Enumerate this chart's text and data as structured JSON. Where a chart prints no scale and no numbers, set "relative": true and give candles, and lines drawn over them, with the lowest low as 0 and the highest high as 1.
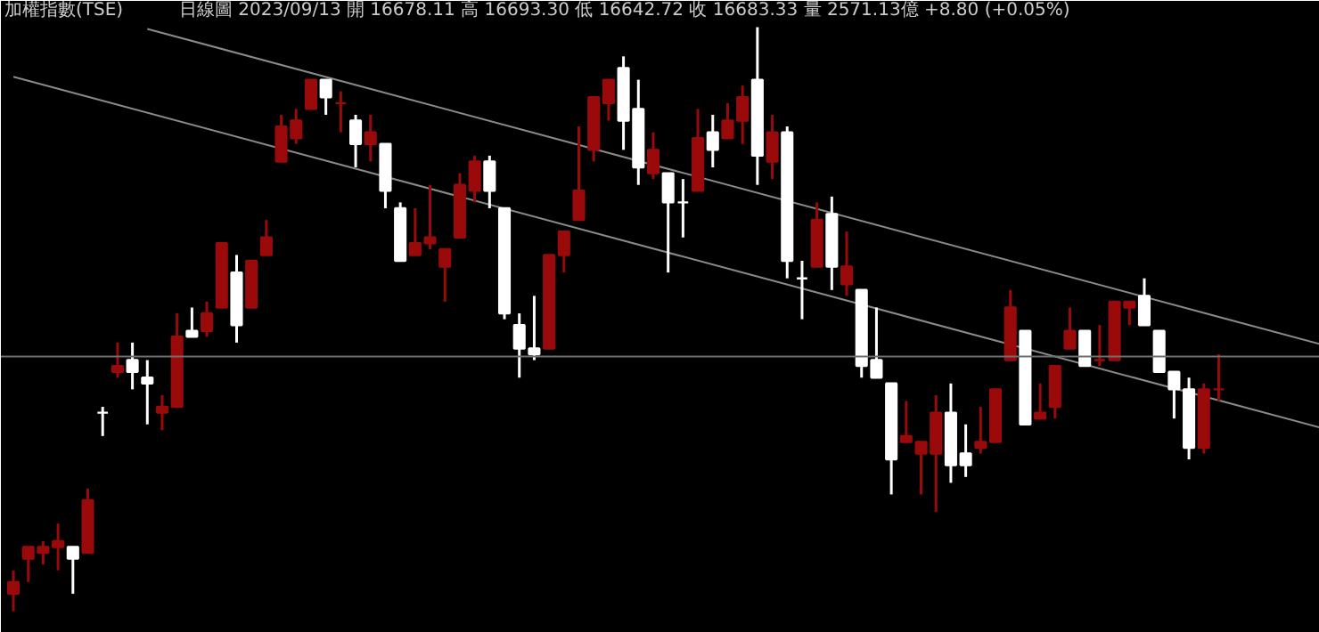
{
  "chart_data": {
    "type": "candlestick",
    "title": "加權指數(TSE)",
    "subtitle": "日線圖  2023/09/13  開 16678.11  高 16693.30  低 16642.72  收 16683.33  量 2571.13億  +8.80 (+0.05%)",
    "relative": true,
    "tick_labels": false,
    "grid": false,
    "categories": [
      null,
      null,
      null,
      null,
      null,
      null,
      null,
      null,
      null,
      null,
      null,
      null,
      null,
      null,
      null,
      null,
      null,
      null,
      null,
      null,
      null,
      null,
      null,
      null,
      null,
      null,
      null,
      null,
      null,
      null,
      null,
      null,
      null,
      null,
      null,
      null,
      null,
      null,
      null,
      null,
      null,
      null,
      null,
      null,
      null,
      null,
      null,
      null,
      null,
      null,
      null,
      null,
      null,
      null,
      null,
      null,
      null,
      null,
      null,
      null,
      null,
      null,
      null,
      null,
      null,
      null,
      null,
      null,
      null,
      null,
      null,
      null,
      null,
      null,
      null,
      null,
      null,
      null,
      null,
      null,
      null,
      null
    ],
    "colors": [
      "#9a0a0a",
      "#9a0a0a",
      "#9a0a0a",
      "#9a0a0a",
      "#ffffff",
      "#9a0a0a",
      "#ffffff",
      "#9a0a0a",
      "#ffffff",
      "#ffffff",
      "#9a0a0a",
      "#9a0a0a",
      "#ffffff",
      "#9a0a0a",
      "#9a0a0a",
      "#ffffff",
      "#9a0a0a",
      "#9a0a0a",
      "#9a0a0a",
      "#9a0a0a",
      "#9a0a0a",
      "#ffffff",
      "#9a0a0a",
      "#ffffff",
      "#9a0a0a",
      "#ffffff",
      "#ffffff",
      "#9a0a0a",
      "#9a0a0a",
      "#9a0a0a",
      "#9a0a0a",
      "#9a0a0a",
      "#ffffff",
      "#ffffff",
      "#ffffff",
      "#ffffff",
      "#9a0a0a",
      "#9a0a0a",
      "#9a0a0a",
      "#9a0a0a",
      "#9a0a0a",
      "#ffffff",
      "#ffffff",
      "#9a0a0a",
      "#ffffff",
      "#ffffff",
      "#9a0a0a",
      "#ffffff",
      "#9a0a0a",
      "#9a0a0a",
      "#ffffff",
      "#9a0a0a",
      "#ffffff",
      "#ffffff",
      "#9a0a0a",
      "#ffffff",
      "#9a0a0a",
      "#ffffff",
      "#ffffff",
      "#ffffff",
      "#9a0a0a",
      "#9a0a0a",
      "#9a0a0a",
      "#ffffff",
      "#ffffff",
      "#9a0a0a",
      "#9a0a0a",
      "#9a0a0a",
      "#ffffff",
      "#9a0a0a",
      "#9a0a0a",
      "#9a0a0a",
      "#ffffff",
      "#9a0a0a",
      "#9a0a0a",
      "#9a0a0a",
      "#ffffff",
      "#ffffff",
      "#ffffff",
      "#ffffff",
      "#9a0a0a",
      "#9a0a0a"
    ],
    "ohlc": [
      [
        0.03,
        0.07,
        0,
        0.05
      ],
      [
        0.09,
        0.11,
        0.05,
        0.11
      ],
      [
        0.1,
        0.12,
        0.08,
        0.11
      ],
      [
        0.11,
        0.15,
        0.07,
        0.12
      ],
      [
        0.11,
        0.11,
        0.03,
        0.09
      ],
      [
        0.1,
        0.21,
        0.1,
        0.19
      ],
      [
        0.34,
        0.35,
        0.3,
        0.34
      ],
      [
        0.41,
        0.46,
        0.4,
        0.42
      ],
      [
        0.43,
        0.46,
        0.38,
        0.41
      ],
      [
        0.4,
        0.43,
        0.32,
        0.39
      ],
      [
        0.34,
        0.37,
        0.31,
        0.35
      ],
      [
        0.35,
        0.51,
        0.35,
        0.47
      ],
      [
        0.48,
        0.52,
        0.47,
        0.47
      ],
      [
        0.48,
        0.53,
        0.47,
        0.51
      ],
      [
        0.52,
        0.63,
        0.52,
        0.63
      ],
      [
        0.58,
        0.61,
        0.46,
        0.49
      ],
      [
        0.52,
        0.6,
        0.52,
        0.6
      ],
      [
        0.61,
        0.67,
        0.61,
        0.64
      ],
      [
        0.77,
        0.85,
        0.77,
        0.83
      ],
      [
        0.81,
        0.86,
        0.8,
        0.84
      ],
      [
        0.86,
        0.91,
        0.86,
        0.91
      ],
      [
        0.91,
        0.91,
        0.85,
        0.88
      ],
      [
        0.87,
        0.89,
        0.82,
        0.87
      ],
      [
        0.84,
        0.85,
        0.76,
        0.8
      ],
      [
        0.8,
        0.85,
        0.77,
        0.82
      ],
      [
        0.8,
        0.8,
        0.69,
        0.72
      ],
      [
        0.69,
        0.7,
        0.6,
        0.6
      ],
      [
        0.61,
        0.69,
        0.61,
        0.63
      ],
      [
        0.63,
        0.73,
        0.62,
        0.64
      ],
      [
        0.59,
        0.62,
        0.53,
        0.62
      ],
      [
        0.64,
        0.75,
        0.64,
        0.73
      ],
      [
        0.72,
        0.78,
        0.7,
        0.77
      ],
      [
        0.77,
        0.78,
        0.69,
        0.72
      ],
      [
        0.69,
        0.69,
        0.5,
        0.51
      ],
      [
        0.49,
        0.51,
        0.4,
        0.45
      ],
      [
        0.45,
        0.54,
        0.43,
        0.44
      ],
      [
        0.45,
        0.61,
        0.45,
        0.61
      ],
      [
        0.61,
        0.65,
        0.58,
        0.65
      ],
      [
        0.67,
        0.83,
        0.67,
        0.72
      ],
      [
        0.79,
        0.88,
        0.77,
        0.88
      ],
      [
        0.87,
        0.91,
        0.84,
        0.91
      ],
      [
        0.93,
        0.95,
        0.79,
        0.84
      ],
      [
        0.86,
        0.91,
        0.73,
        0.76
      ],
      [
        0.75,
        0.82,
        0.74,
        0.79
      ],
      [
        0.75,
        0.75,
        0.58,
        0.7
      ],
      [
        0.7,
        0.74,
        0.64,
        0.7
      ],
      [
        0.72,
        0.86,
        0.72,
        0.81
      ],
      [
        0.82,
        0.85,
        0.76,
        0.79
      ],
      [
        0.81,
        0.87,
        0.81,
        0.84
      ],
      [
        0.84,
        0.9,
        0.8,
        0.88
      ],
      [
        0.91,
        1,
        0.73,
        0.78
      ],
      [
        0.77,
        0.85,
        0.74,
        0.82
      ],
      [
        0.82,
        0.83,
        0.57,
        0.6
      ],
      [
        0.57,
        0.6,
        0.5,
        0.57
      ],
      [
        0.59,
        0.7,
        0.59,
        0.67
      ],
      [
        0.68,
        0.71,
        0.55,
        0.59
      ],
      [
        0.56,
        0.65,
        0.54,
        0.59
      ],
      [
        0.55,
        0.55,
        0.4,
        0.42
      ],
      [
        0.43,
        0.52,
        0.4,
        0.4
      ],
      [
        0.39,
        0.39,
        0.2,
        0.26
      ],
      [
        0.29,
        0.36,
        0.29,
        0.3
      ],
      [
        0.27,
        0.29,
        0.2,
        0.29
      ],
      [
        0.27,
        0.37,
        0.17,
        0.34
      ],
      [
        0.34,
        0.39,
        0.22,
        0.25
      ],
      [
        0.27,
        0.32,
        0.23,
        0.25
      ],
      [
        0.28,
        0.35,
        0.27,
        0.29
      ],
      [
        0.29,
        0.38,
        0.29,
        0.38
      ],
      [
        0.43,
        0.55,
        0.43,
        0.52
      ],
      [
        0.48,
        0.48,
        0.32,
        0.32
      ],
      [
        0.33,
        0.39,
        0.33,
        0.34
      ],
      [
        0.35,
        0.42,
        0.33,
        0.42
      ],
      [
        0.45,
        0.52,
        0.45,
        0.48
      ],
      [
        0.48,
        0.48,
        0.42,
        0.42
      ],
      [
        0.43,
        0.49,
        0.42,
        0.43
      ],
      [
        0.43,
        0.53,
        0.43,
        0.53
      ],
      [
        0.52,
        0.53,
        0.49,
        0.53
      ],
      [
        0.54,
        0.57,
        0.49,
        0.49
      ],
      [
        0.48,
        0.48,
        0.41,
        0.41
      ],
      [
        0.41,
        0.41,
        0.33,
        0.38
      ],
      [
        0.38,
        0.4,
        0.26,
        0.28
      ],
      [
        0.28,
        0.39,
        0.27,
        0.38
      ],
      [
        0.38,
        0.44,
        0.36,
        0.38
      ]
    ],
    "series": [
      {
        "type": "line",
        "color": "#8a8a8a",
        "values": [
          null,
          null,
          null,
          null,
          null,
          null,
          null,
          null,
          null,
          0.997,
          null,
          null,
          null,
          null,
          null,
          null,
          null,
          null,
          null,
          null,
          null,
          null,
          null,
          null,
          null,
          null,
          null,
          null,
          null,
          null,
          null,
          null,
          null,
          null,
          null,
          null,
          null,
          null,
          null,
          null,
          null,
          null,
          null,
          null,
          null,
          null,
          null,
          null,
          null,
          null,
          null,
          null,
          null,
          null,
          null,
          null,
          null,
          null,
          null,
          null,
          null,
          null,
          null,
          null,
          null,
          null,
          null,
          null,
          null,
          null,
          null,
          null,
          null,
          null,
          null,
          null,
          null,
          null,
          null,
          null,
          null,
          0.504
        ]
      },
      {
        "type": "line",
        "color": "#8a8a8a",
        "values": [
          0.915,
          null,
          null,
          null,
          null,
          null,
          null,
          null,
          null,
          null,
          null,
          null,
          null,
          null,
          null,
          null,
          null,
          null,
          null,
          null,
          null,
          null,
          null,
          null,
          null,
          null,
          null,
          null,
          null,
          null,
          null,
          null,
          null,
          null,
          null,
          null,
          null,
          null,
          null,
          null,
          null,
          null,
          null,
          null,
          null,
          null,
          null,
          null,
          null,
          null,
          null,
          null,
          null,
          null,
          null,
          null,
          null,
          null,
          null,
          null,
          null,
          null,
          null,
          null,
          null,
          null,
          null,
          null,
          null,
          null,
          null,
          null,
          null,
          null,
          null,
          null,
          null,
          null,
          null,
          null,
          null,
          0.361
        ]
      }
    ],
    "ref_lines": [
      {
        "axis": "y",
        "value": 0.436,
        "color": "#6e6e6e"
      }
    ]
  }
}
